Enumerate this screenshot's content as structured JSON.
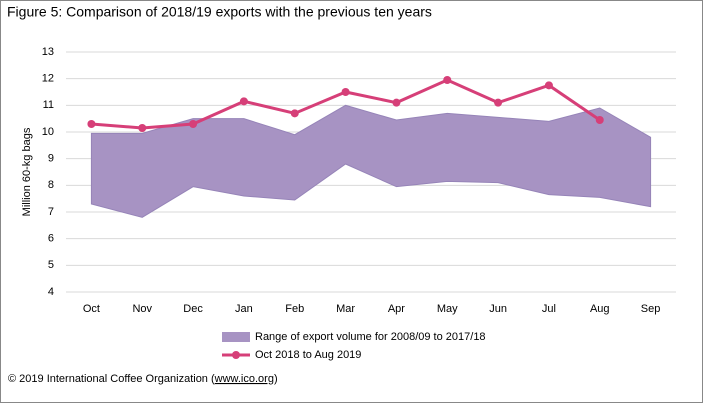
{
  "chart_data": {
    "type": "line",
    "title": "Figure 5: Comparison of 2018/19 exports with the previous ten years",
    "y_label": "Million 60-kg bags",
    "categories": [
      "Oct",
      "Nov",
      "Dec",
      "Jan",
      "Feb",
      "Mar",
      "Apr",
      "May",
      "Jun",
      "Jul",
      "Aug",
      "Sep"
    ],
    "range": {
      "name": "Range of export volume for 2008/09 to 2017/18",
      "color": "#a793c3",
      "low": [
        7.3,
        6.8,
        7.95,
        7.6,
        7.45,
        8.8,
        7.95,
        8.15,
        8.1,
        7.65,
        7.55,
        7.2
      ],
      "high": [
        9.95,
        9.95,
        10.5,
        10.5,
        9.9,
        11.0,
        10.45,
        10.7,
        10.55,
        10.4,
        10.9,
        9.8
      ]
    },
    "series": [
      {
        "name": "Oct 2018 to Aug 2019",
        "color": "#d63f78",
        "values": [
          10.3,
          10.15,
          10.3,
          11.15,
          10.7,
          11.5,
          11.1,
          11.95,
          11.1,
          11.75,
          10.45,
          null
        ]
      }
    ],
    "ylim": [
      4,
      13
    ],
    "yticks": [
      4,
      5,
      6,
      7,
      8,
      9,
      10,
      11,
      12,
      13
    ],
    "grid": true,
    "footer": "© 2019 International Coffee Organization (",
    "footer_link": "www.ico.org",
    "footer_end": ")"
  }
}
